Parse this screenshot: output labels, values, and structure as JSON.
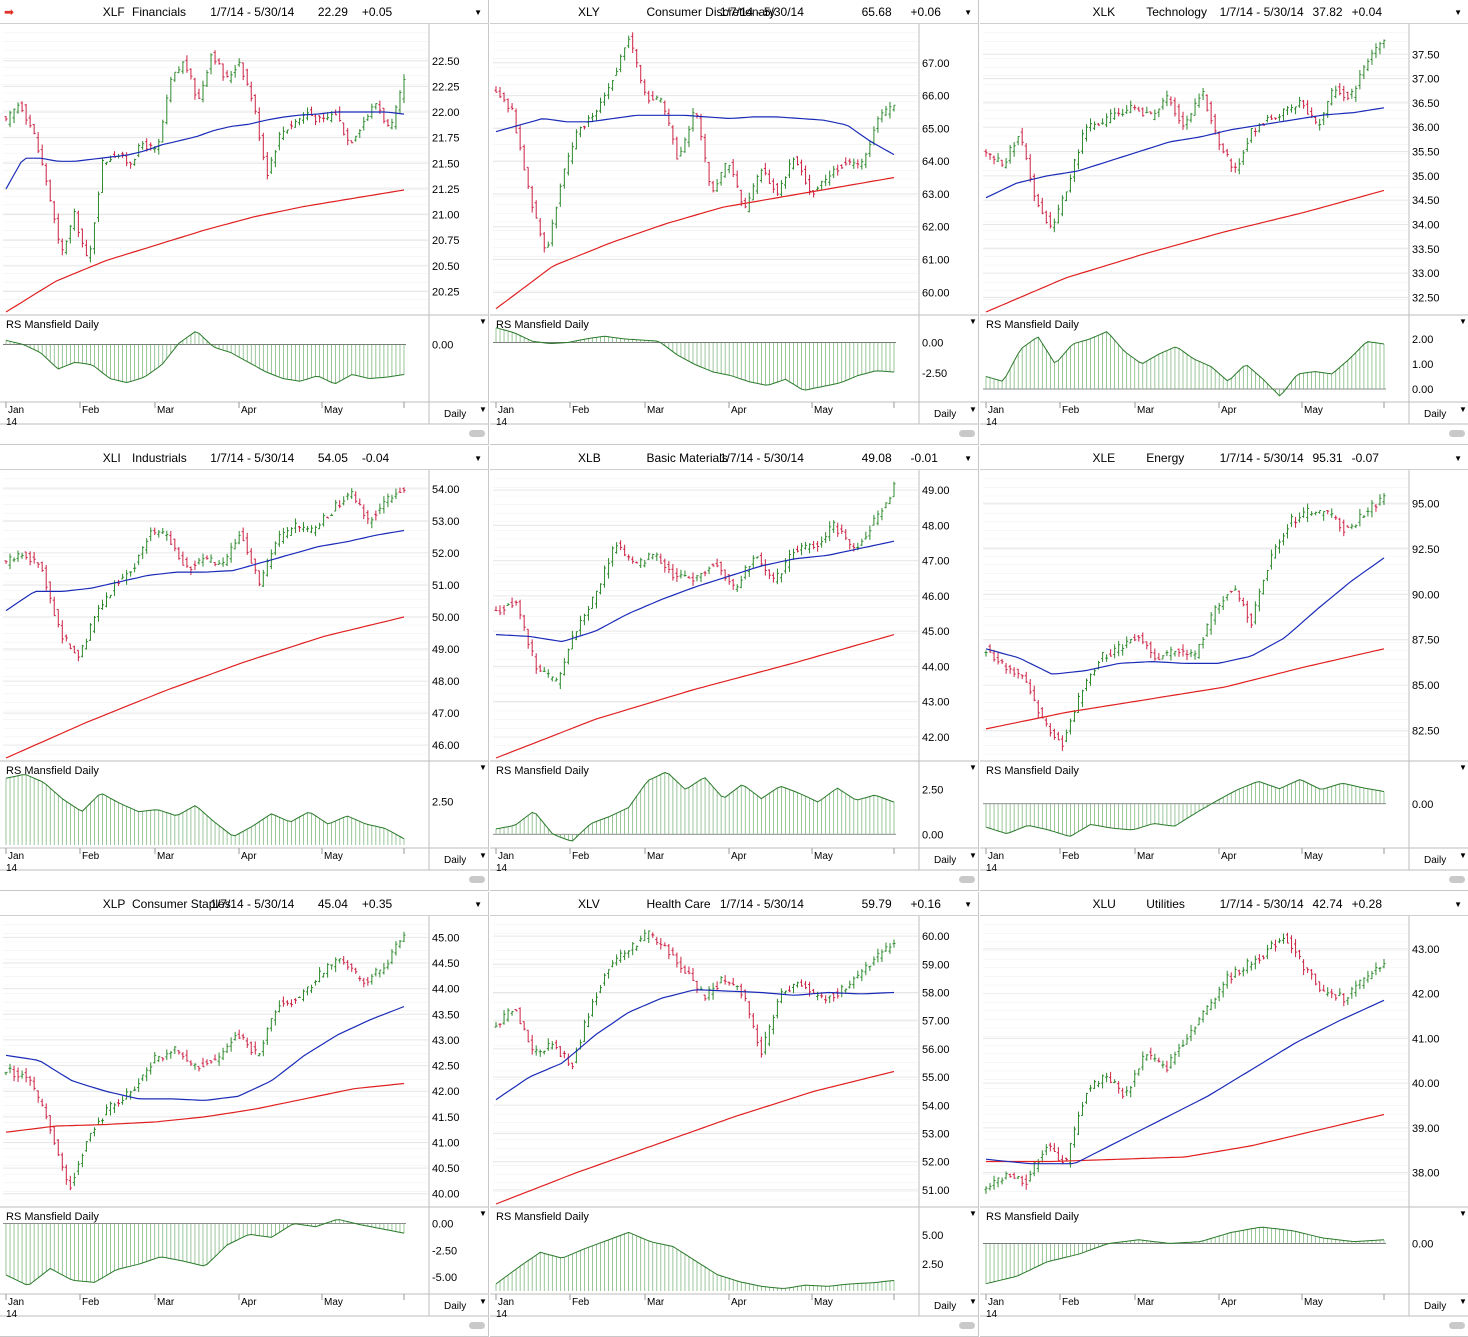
{
  "header_icon": "red-arrow-icon",
  "colors": {
    "price_up": "#2d8a2d",
    "price_down": "#cc2244",
    "ma_fast": "#1a2bb8",
    "ma_slow": "#e02020",
    "rs_line": "#2a7a2a",
    "rs_bars": "#6fae6f"
  },
  "panels": [
    {
      "symbol": "XLF",
      "name": "Financials",
      "range": "1/7/14 - 5/30/14",
      "last": "22.29",
      "change": "+0.05",
      "price_ticks": [
        "22.50",
        "22.25",
        "22.00",
        "21.75",
        "21.50",
        "21.25",
        "21.00",
        "20.75",
        "20.50",
        "20.25"
      ],
      "rs_label": "RS Mansfield Daily",
      "rs_ticks": [
        "0.00"
      ],
      "months": [
        "Jan",
        "Feb",
        "Mar",
        "Apr",
        "May"
      ],
      "year": "14",
      "period": "Daily"
    },
    {
      "symbol": "XLY",
      "name": "Consumer Discretionary",
      "range": "1/7/14 - 5/30/14",
      "last": "65.68",
      "change": "+0.06",
      "price_ticks": [
        "67.00",
        "66.00",
        "65.00",
        "64.00",
        "63.00",
        "62.00",
        "61.00",
        "60.00"
      ],
      "rs_label": "RS Mansfield Daily",
      "rs_ticks": [
        "0.00",
        "-2.50"
      ],
      "months": [
        "Jan",
        "Feb",
        "Mar",
        "Apr",
        "May"
      ],
      "year": "14",
      "period": "Daily"
    },
    {
      "symbol": "XLK",
      "name": "Technology",
      "range": "1/7/14 - 5/30/14",
      "last": "37.82",
      "change": "+0.04",
      "price_ticks": [
        "37.50",
        "37.00",
        "36.50",
        "36.00",
        "35.50",
        "35.00",
        "34.50",
        "34.00",
        "33.50",
        "33.00",
        "32.50"
      ],
      "rs_label": "RS Mansfield Daily",
      "rs_ticks": [
        "2.00",
        "1.00",
        "0.00"
      ],
      "months": [
        "Jan",
        "Feb",
        "Mar",
        "Apr",
        "May"
      ],
      "year": "14",
      "period": "Daily"
    },
    {
      "symbol": "XLI",
      "name": "Industrials",
      "range": "1/7/14 - 5/30/14",
      "last": "54.05",
      "change": "-0.04",
      "price_ticks": [
        "54.00",
        "53.00",
        "52.00",
        "51.00",
        "50.00",
        "49.00",
        "48.00",
        "47.00",
        "46.00"
      ],
      "rs_label": "RS Mansfield Daily",
      "rs_ticks": [
        "2.50"
      ],
      "months": [
        "Jan",
        "Feb",
        "Mar",
        "Apr",
        "May"
      ],
      "year": "14",
      "period": "Daily"
    },
    {
      "symbol": "XLB",
      "name": "Basic Materials",
      "range": "1/7/14 - 5/30/14",
      "last": "49.08",
      "change": "-0.01",
      "price_ticks": [
        "49.00",
        "48.00",
        "47.00",
        "46.00",
        "45.00",
        "44.00",
        "43.00",
        "42.00"
      ],
      "rs_label": "RS Mansfield Daily",
      "rs_ticks": [
        "2.50",
        "0.00"
      ],
      "months": [
        "Jan",
        "Feb",
        "Mar",
        "Apr",
        "May"
      ],
      "year": "14",
      "period": "Daily"
    },
    {
      "symbol": "XLE",
      "name": "Energy",
      "range": "1/7/14 - 5/30/14",
      "last": "95.31",
      "change": "-0.07",
      "price_ticks": [
        "95.00",
        "92.50",
        "90.00",
        "87.50",
        "85.00",
        "82.50"
      ],
      "rs_label": "RS Mansfield Daily",
      "rs_ticks": [
        "0.00"
      ],
      "months": [
        "Jan",
        "Feb",
        "Mar",
        "Apr",
        "May"
      ],
      "year": "14",
      "period": "Daily"
    },
    {
      "symbol": "XLP",
      "name": "Consumer Staples",
      "range": "1/7/14 - 5/30/14",
      "last": "45.04",
      "change": "+0.35",
      "price_ticks": [
        "45.00",
        "44.50",
        "44.00",
        "43.50",
        "43.00",
        "42.50",
        "42.00",
        "41.50",
        "41.00",
        "40.50",
        "40.00"
      ],
      "rs_label": "RS Mansfield Daily",
      "rs_ticks": [
        "0.00",
        "-2.50",
        "-5.00"
      ],
      "months": [
        "Jan",
        "Feb",
        "Mar",
        "Apr",
        "May"
      ],
      "year": "14",
      "period": "Daily"
    },
    {
      "symbol": "XLV",
      "name": "Health Care",
      "range": "1/7/14 - 5/30/14",
      "last": "59.79",
      "change": "+0.16",
      "price_ticks": [
        "60.00",
        "59.00",
        "58.00",
        "57.00",
        "56.00",
        "55.00",
        "54.00",
        "53.00",
        "52.00",
        "51.00"
      ],
      "rs_label": "RS Mansfield Daily",
      "rs_ticks": [
        "5.00",
        "2.50"
      ],
      "months": [
        "Jan",
        "Feb",
        "Mar",
        "Apr",
        "May"
      ],
      "year": "14",
      "period": "Daily"
    },
    {
      "symbol": "XLU",
      "name": "Utilities",
      "range": "1/7/14 - 5/30/14",
      "last": "42.74",
      "change": "+0.28",
      "price_ticks": [
        "43.00",
        "42.00",
        "41.00",
        "40.00",
        "39.00",
        "38.00"
      ],
      "rs_label": "RS Mansfield Daily",
      "rs_ticks": [
        "0.00"
      ],
      "months": [
        "Jan",
        "Feb",
        "Mar",
        "Apr",
        "May"
      ],
      "year": "14",
      "period": "Daily"
    }
  ],
  "chart_data": [
    {
      "type": "line",
      "symbol": "XLF",
      "title": "XLF Financials",
      "ylim": [
        20.05,
        22.8
      ],
      "rs_ylim": [
        -4,
        1.5
      ],
      "rs_zero": 0,
      "closes": [
        21.9,
        22.1,
        21.8,
        21.3,
        20.6,
        21.0,
        20.5,
        21.5,
        21.6,
        21.5,
        21.7,
        21.6,
        22.3,
        22.5,
        22.1,
        22.6,
        22.3,
        22.5,
        22.1,
        21.4,
        21.8,
        21.9,
        22.0,
        21.9,
        22.0,
        21.7,
        21.9,
        22.1,
        21.8,
        22.3
      ],
      "ma_fast": [
        21.25,
        21.55,
        21.55,
        21.52,
        21.52,
        21.54,
        21.56,
        21.58,
        21.62,
        21.68,
        21.72,
        21.76,
        21.82,
        21.86,
        21.88,
        21.92,
        21.95,
        21.97,
        21.98,
        22.0,
        22.0,
        22.0,
        22.0,
        21.98
      ],
      "ma_slow": [
        20.05,
        20.35,
        20.55,
        20.7,
        20.85,
        20.98,
        21.08,
        21.16,
        21.24
      ],
      "rs": [
        0.3,
        0.0,
        -0.6,
        -1.8,
        -1.3,
        -1.5,
        -2.5,
        -2.8,
        -2.4,
        -1.5,
        0.1,
        1.0,
        -0.2,
        -0.6,
        -1.3,
        -2.0,
        -2.5,
        -2.7,
        -2.3,
        -2.9,
        -2.2,
        -2.5,
        -2.4,
        -2.2
      ]
    },
    {
      "type": "line",
      "symbol": "XLY",
      "title": "XLY Consumer Discretionary",
      "ylim": [
        59.4,
        68.0
      ],
      "rs_ylim": [
        -4.6,
        1.5
      ],
      "rs_zero": 0,
      "closes": [
        66.2,
        65.5,
        63.0,
        61.2,
        63.5,
        65.0,
        65.5,
        66.5,
        67.8,
        66.0,
        65.8,
        64.0,
        65.6,
        63.0,
        64.0,
        62.5,
        63.8,
        63.0,
        64.2,
        63.0,
        63.5,
        64.0,
        63.8,
        65.3,
        65.7
      ],
      "ma_fast": [
        64.9,
        65.1,
        65.3,
        65.2,
        65.2,
        65.3,
        65.4,
        65.4,
        65.4,
        65.35,
        65.3,
        65.35,
        65.35,
        65.3,
        65.25,
        65.1,
        64.6,
        64.2
      ],
      "ma_slow": [
        59.5,
        60.8,
        61.5,
        62.1,
        62.6,
        62.9,
        63.2,
        63.5
      ],
      "rs": [
        1.2,
        0.8,
        0.1,
        -0.1,
        0.0,
        0.3,
        0.5,
        0.3,
        0.2,
        0.1,
        -1.0,
        -1.8,
        -2.4,
        -2.7,
        -3.2,
        -3.5,
        -3.0,
        -3.9,
        -3.6,
        -3.3,
        -2.7,
        -2.3,
        -2.4
      ]
    },
    {
      "type": "line",
      "symbol": "XLK",
      "title": "XLK Technology",
      "ylim": [
        32.2,
        38.0
      ],
      "rs_ylim": [
        -0.4,
        2.6
      ],
      "rs_zero": 0,
      "closes": [
        35.5,
        35.2,
        35.9,
        34.5,
        33.9,
        34.9,
        36.0,
        36.1,
        36.3,
        36.4,
        36.2,
        36.6,
        36.0,
        36.8,
        35.7,
        35.1,
        35.9,
        36.2,
        36.3,
        36.5,
        36.0,
        36.8,
        36.6,
        37.4,
        37.82
      ],
      "ma_fast": [
        34.55,
        34.85,
        35.0,
        35.1,
        35.3,
        35.5,
        35.7,
        35.8,
        35.95,
        36.05,
        36.15,
        36.25,
        36.3,
        36.4
      ],
      "ma_slow": [
        32.2,
        32.9,
        33.4,
        33.85,
        34.25,
        34.7
      ],
      "rs": [
        0.5,
        0.3,
        1.6,
        2.1,
        1.0,
        1.8,
        2.0,
        2.3,
        1.5,
        1.0,
        1.4,
        1.7,
        1.2,
        0.9,
        0.3,
        1.0,
        0.4,
        -0.3,
        0.6,
        0.7,
        0.6,
        1.2,
        1.9,
        1.8
      ]
    },
    {
      "type": "line",
      "symbol": "XLI",
      "title": "XLI Industrials",
      "ylim": [
        45.6,
        54.4
      ],
      "rs_ylim": [
        0.4,
        4.0
      ],
      "rs_zero": null,
      "closes": [
        51.7,
        52.0,
        51.5,
        49.5,
        48.7,
        50.1,
        51.0,
        51.5,
        52.7,
        52.5,
        51.5,
        51.8,
        51.6,
        52.7,
        51.0,
        52.4,
        52.8,
        52.7,
        53.3,
        53.9,
        53.0,
        53.6,
        54.05
      ],
      "ma_fast": [
        50.2,
        50.8,
        50.8,
        50.9,
        51.1,
        51.3,
        51.4,
        51.4,
        51.45,
        51.7,
        51.95,
        52.2,
        52.35,
        52.55,
        52.7
      ],
      "ma_slow": [
        45.6,
        46.7,
        47.7,
        48.6,
        49.4,
        50.0
      ],
      "rs": [
        3.6,
        3.8,
        3.4,
        2.6,
        2.0,
        2.9,
        2.4,
        2.0,
        2.1,
        1.8,
        2.3,
        1.5,
        0.8,
        1.3,
        1.9,
        1.5,
        2.0,
        1.4,
        1.8,
        1.4,
        1.2,
        0.7
      ]
    },
    {
      "type": "line",
      "symbol": "XLB",
      "title": "XLB Basic Materials",
      "ylim": [
        41.4,
        49.4
      ],
      "rs_ylim": [
        -0.6,
        3.6
      ],
      "rs_zero": 0,
      "closes": [
        45.5,
        45.9,
        44.0,
        43.5,
        45.0,
        46.0,
        47.5,
        46.8,
        47.2,
        46.5,
        46.5,
        47.0,
        46.2,
        47.2,
        46.4,
        47.3,
        47.4,
        48.0,
        47.3,
        48.1,
        49.08
      ],
      "ma_fast": [
        44.9,
        44.85,
        44.7,
        45.0,
        45.5,
        45.9,
        46.25,
        46.55,
        46.85,
        47.05,
        47.15,
        47.35,
        47.55
      ],
      "ma_slow": [
        41.4,
        42.5,
        43.35,
        44.1,
        44.9
      ],
      "rs": [
        0.3,
        0.5,
        1.3,
        0.0,
        -0.4,
        0.6,
        1.0,
        1.5,
        3.0,
        3.5,
        2.5,
        3.2,
        2.0,
        2.8,
        2.0,
        2.7,
        2.3,
        1.8,
        2.6,
        1.9,
        2.2,
        1.8
      ]
    },
    {
      "type": "line",
      "symbol": "XLE",
      "title": "XLE Energy",
      "ylim": [
        81.0,
        96.5
      ],
      "rs_ylim": [
        -4.4,
        3.6
      ],
      "rs_zero": 0,
      "closes": [
        87.0,
        86.0,
        85.5,
        83.0,
        81.8,
        84.5,
        86.5,
        87.0,
        87.8,
        86.5,
        87.0,
        86.5,
        89.0,
        90.4,
        88.5,
        92.0,
        94.0,
        94.5,
        94.5,
        93.5,
        94.5,
        95.31
      ],
      "ma_fast": [
        87.0,
        86.5,
        85.6,
        85.8,
        86.2,
        86.3,
        86.2,
        86.2,
        86.6,
        87.6,
        89.2,
        90.7,
        92.0
      ],
      "ma_slow": [
        82.6,
        83.5,
        84.2,
        84.9,
        86.0,
        87.0
      ],
      "rs": [
        -2.5,
        -3.2,
        -2.3,
        -2.8,
        -3.5,
        -2.2,
        -2.6,
        -2.8,
        -2.1,
        -2.4,
        -1.0,
        0.3,
        1.5,
        2.4,
        1.6,
        2.6,
        1.5,
        2.2,
        1.7,
        1.3
      ]
    },
    {
      "type": "line",
      "symbol": "XLP",
      "title": "XLP Consumer Staples",
      "ylim": [
        39.8,
        45.3
      ],
      "rs_ylim": [
        -6.3,
        0.7
      ],
      "rs_zero": 0,
      "closes": [
        42.4,
        42.3,
        41.4,
        40.1,
        41.2,
        41.7,
        42.0,
        42.6,
        42.8,
        42.5,
        42.6,
        43.1,
        42.7,
        43.7,
        43.8,
        44.3,
        44.6,
        44.1,
        44.4,
        45.04
      ],
      "ma_fast": [
        42.7,
        42.6,
        42.2,
        42.0,
        41.85,
        41.85,
        41.82,
        41.9,
        42.2,
        42.7,
        43.1,
        43.4,
        43.65
      ],
      "ma_slow": [
        41.2,
        41.32,
        41.35,
        41.4,
        41.5,
        41.65,
        41.85,
        42.05,
        42.15
      ],
      "rs": [
        -4.8,
        -5.8,
        -4.2,
        -5.3,
        -5.5,
        -4.3,
        -3.8,
        -3.1,
        -3.5,
        -4.0,
        -2.0,
        -1.0,
        -1.3,
        0.0,
        -0.3,
        0.4,
        -0.1,
        -0.5,
        -0.9
      ]
    },
    {
      "type": "line",
      "symbol": "XLV",
      "title": "XLV Health Care",
      "ylim": [
        50.5,
        60.5
      ],
      "rs_ylim": [
        0.2,
        6.6
      ],
      "rs_zero": null,
      "closes": [
        56.8,
        57.5,
        55.8,
        56.2,
        55.4,
        57.5,
        59.0,
        59.5,
        60.1,
        59.5,
        58.8,
        57.8,
        58.5,
        58.0,
        55.8,
        58.0,
        58.4,
        57.8,
        58.0,
        58.5,
        59.2,
        59.79
      ],
      "ma_fast": [
        54.2,
        55.0,
        55.5,
        56.5,
        57.3,
        57.8,
        58.1,
        58.05,
        58.0,
        57.9,
        58.0,
        57.95,
        58.0
      ],
      "ma_slow": [
        50.5,
        51.6,
        52.6,
        53.6,
        54.5,
        55.2
      ],
      "rs": [
        0.8,
        2.2,
        3.5,
        3.0,
        3.8,
        4.5,
        5.2,
        4.4,
        4.0,
        2.8,
        1.6,
        1.0,
        0.6,
        0.4,
        0.7,
        0.6,
        0.8,
        0.9,
        1.1
      ]
    },
    {
      "type": "line",
      "symbol": "XLU",
      "title": "XLU Utilities",
      "ylim": [
        37.3,
        43.6
      ],
      "rs_ylim": [
        -2.6,
        1.5
      ],
      "rs_zero": 0,
      "closes": [
        37.6,
        38.0,
        37.8,
        38.6,
        38.2,
        39.8,
        40.2,
        39.7,
        40.7,
        40.3,
        41.0,
        41.6,
        42.3,
        42.6,
        42.9,
        43.3,
        42.6,
        42.0,
        41.9,
        42.3,
        42.74
      ],
      "ma_fast": [
        38.3,
        38.2,
        38.2,
        38.7,
        39.2,
        39.7,
        40.3,
        40.9,
        41.4,
        41.85
      ],
      "ma_slow": [
        38.25,
        38.25,
        38.3,
        38.35,
        38.6,
        38.95,
        39.3
      ],
      "rs": [
        -2.2,
        -1.8,
        -1.0,
        -0.6,
        0.0,
        0.2,
        0.0,
        0.1,
        0.6,
        0.9,
        0.7,
        0.3,
        0.1,
        0.2
      ]
    }
  ]
}
